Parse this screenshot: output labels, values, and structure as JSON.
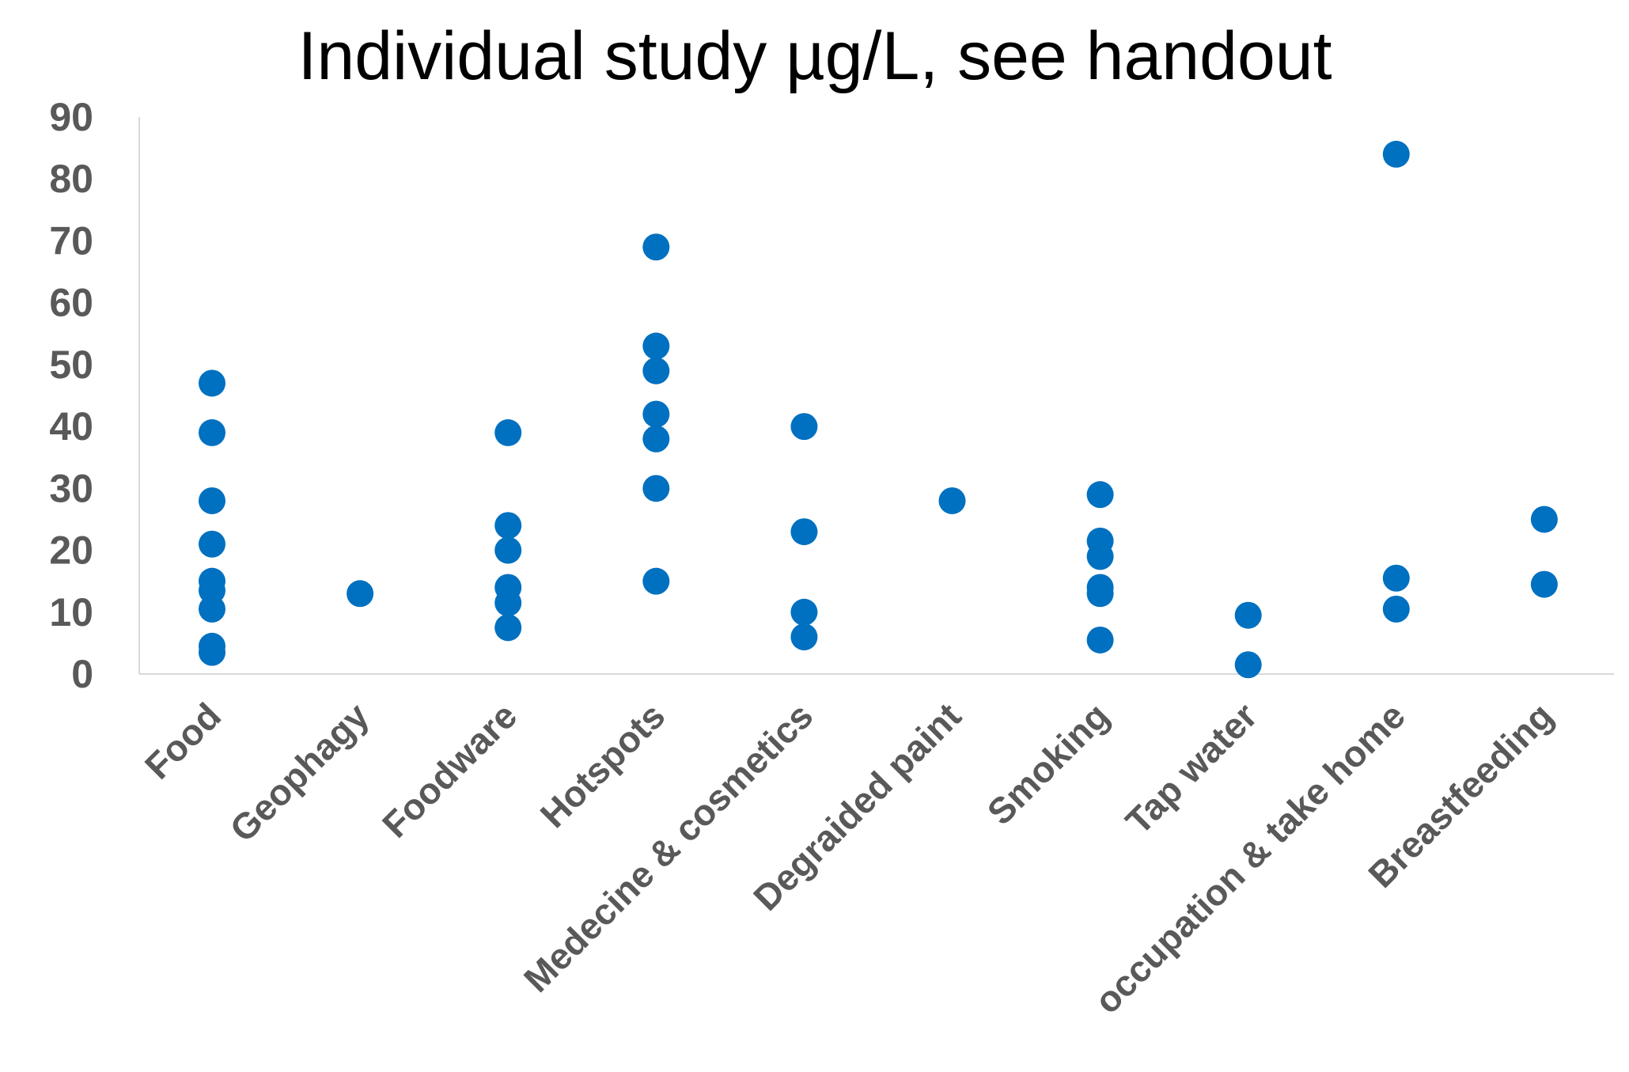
{
  "chart_data": {
    "type": "scatter",
    "title": "Individual study µg/L, see handout",
    "xlabel": "",
    "ylabel": "",
    "ylim": [
      0,
      90
    ],
    "yticks": [
      0,
      10,
      20,
      30,
      40,
      50,
      60,
      70,
      80,
      90
    ],
    "grid": false,
    "legend": "none",
    "categories": [
      "Food",
      "Geophagy",
      "Foodware",
      "Hotspots",
      "Medecine & cosmetics",
      "Degraided paint",
      "Smoking",
      "Tap water",
      "occupation & take home",
      "Breastfeeding"
    ],
    "series": [
      {
        "color": "#0070C0",
        "points": [
          {
            "x": "Food",
            "y": 47
          },
          {
            "x": "Food",
            "y": 39
          },
          {
            "x": "Food",
            "y": 28
          },
          {
            "x": "Food",
            "y": 21
          },
          {
            "x": "Food",
            "y": 15
          },
          {
            "x": "Food",
            "y": 13.5
          },
          {
            "x": "Food",
            "y": 10.5
          },
          {
            "x": "Food",
            "y": 4.5
          },
          {
            "x": "Food",
            "y": 3.5
          },
          {
            "x": "Geophagy",
            "y": 13
          },
          {
            "x": "Foodware",
            "y": 39
          },
          {
            "x": "Foodware",
            "y": 24
          },
          {
            "x": "Foodware",
            "y": 20
          },
          {
            "x": "Foodware",
            "y": 14
          },
          {
            "x": "Foodware",
            "y": 11.5
          },
          {
            "x": "Foodware",
            "y": 7.5
          },
          {
            "x": "Hotspots",
            "y": 69
          },
          {
            "x": "Hotspots",
            "y": 53
          },
          {
            "x": "Hotspots",
            "y": 49
          },
          {
            "x": "Hotspots",
            "y": 42
          },
          {
            "x": "Hotspots",
            "y": 38
          },
          {
            "x": "Hotspots",
            "y": 30
          },
          {
            "x": "Hotspots",
            "y": 15
          },
          {
            "x": "Medecine & cosmetics",
            "y": 40
          },
          {
            "x": "Medecine & cosmetics",
            "y": 23
          },
          {
            "x": "Medecine & cosmetics",
            "y": 10
          },
          {
            "x": "Medecine & cosmetics",
            "y": 6
          },
          {
            "x": "Degraided paint",
            "y": 28
          },
          {
            "x": "Smoking",
            "y": 29
          },
          {
            "x": "Smoking",
            "y": 21.5
          },
          {
            "x": "Smoking",
            "y": 19
          },
          {
            "x": "Smoking",
            "y": 14
          },
          {
            "x": "Smoking",
            "y": 13
          },
          {
            "x": "Smoking",
            "y": 5.5
          },
          {
            "x": "Tap water",
            "y": 9.5
          },
          {
            "x": "Tap water",
            "y": 1.5
          },
          {
            "x": "occupation & take home",
            "y": 84
          },
          {
            "x": "occupation & take home",
            "y": 15.5
          },
          {
            "x": "occupation & take home",
            "y": 10.5
          },
          {
            "x": "Breastfeeding",
            "y": 25
          },
          {
            "x": "Breastfeeding",
            "y": 14.5
          }
        ]
      }
    ]
  }
}
